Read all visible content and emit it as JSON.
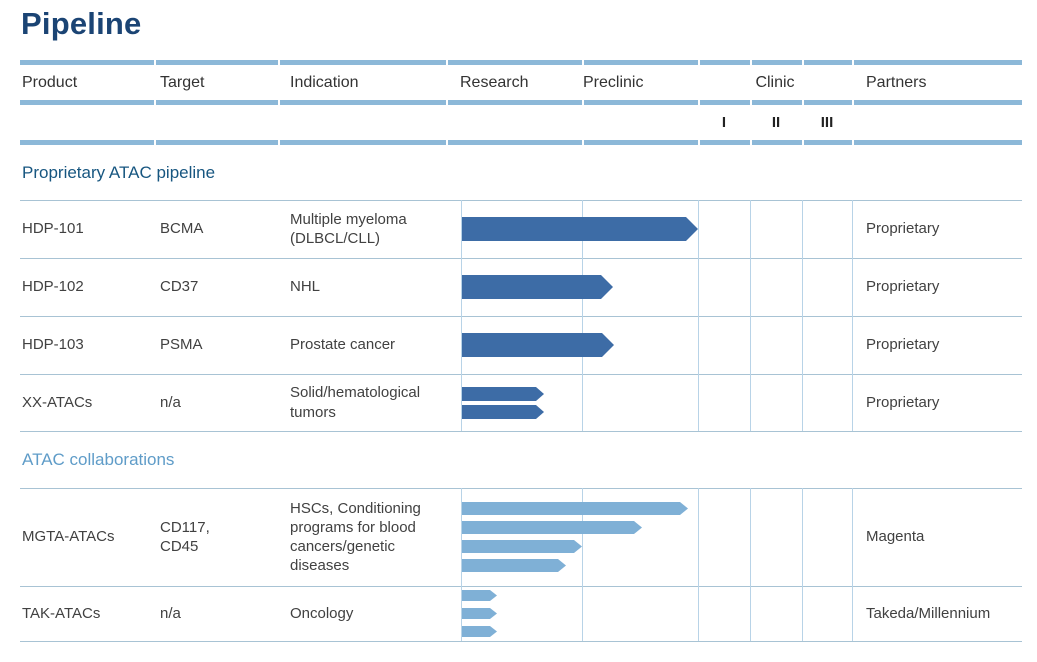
{
  "title": "Pipeline",
  "header": {
    "product": "Product",
    "target": "Target",
    "indication": "Indication",
    "research": "Research",
    "preclinic": "Preclinic",
    "clinic": "Clinic",
    "partners": "Partners",
    "phases": [
      "I",
      "II",
      "III"
    ]
  },
  "sections": {
    "proprietary": "Proprietary ATAC pipeline",
    "collaborations": "ATAC collaborations"
  },
  "colors": {
    "title_text": "#1b4474",
    "section_proprietary_text": "#175680",
    "section_collaborations_text": "#5f9cc8",
    "bar_dark": "#3d6ca6",
    "bar_light": "#7fb0d6",
    "grid_line": "#b8d3e7",
    "row_separator": "#a8c3d4",
    "header_bar": "#8cb8d8"
  },
  "chart_data": {
    "type": "gantt",
    "title": "Pipeline",
    "phase_axis": [
      "Research",
      "Preclinic",
      "Clinic I",
      "Clinic II",
      "Clinic III"
    ],
    "phase_axis_note": "bars start at beginning of Research; end value is phase progress (1.0 = end of Research, 2.0 = end of Preclinic)",
    "rows": [
      {
        "section": "Proprietary ATAC pipeline",
        "product": "HDP-101",
        "target": "BCMA",
        "indication": "Multiple myeloma (DLBCL/CLL)",
        "partner": "Proprietary",
        "bars_end_phase": [
          2.0
        ],
        "bar_color": "#3d6ca6"
      },
      {
        "section": "Proprietary ATAC pipeline",
        "product": "HDP-102",
        "target": "CD37",
        "indication": "NHL",
        "partner": "Proprietary",
        "bars_end_phase": [
          1.27
        ],
        "bar_color": "#3d6ca6"
      },
      {
        "section": "Proprietary ATAC pipeline",
        "product": "HDP-103",
        "target": "PSMA",
        "indication": "Prostate cancer",
        "partner": "Proprietary",
        "bars_end_phase": [
          1.28
        ],
        "bar_color": "#3d6ca6"
      },
      {
        "section": "Proprietary ATAC pipeline",
        "product": "XX-ATACs",
        "target": "n/a",
        "indication": "Solid/hematological tumors",
        "partner": "Proprietary",
        "bars_end_phase": [
          0.69,
          0.69
        ],
        "bar_color": "#3d6ca6"
      },
      {
        "section": "ATAC collaborations",
        "product": "MGTA-ATACs",
        "target": "CD117, CD45",
        "indication": "HSCs, Conditioning programs for blood cancers/genetic diseases",
        "partner": "Magenta",
        "bars_end_phase": [
          1.91,
          1.52,
          1.0,
          0.87
        ],
        "bar_color": "#7fb0d6"
      },
      {
        "section": "ATAC collaborations",
        "product": "TAK-ATACs",
        "target": "n/a",
        "indication": "Oncology",
        "partner": "Takeda/Millennium",
        "bars_end_phase": [
          0.3,
          0.3,
          0.3
        ],
        "bar_color": "#7fb0d6"
      }
    ]
  }
}
